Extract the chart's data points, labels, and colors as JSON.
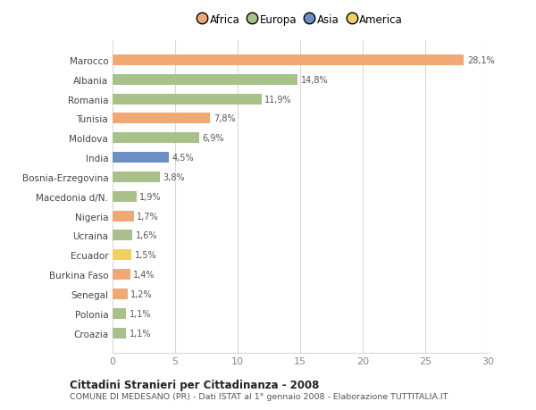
{
  "countries": [
    "Marocco",
    "Albania",
    "Romania",
    "Tunisia",
    "Moldova",
    "India",
    "Bosnia-Erzegovina",
    "Macedonia d/N.",
    "Nigeria",
    "Ucraina",
    "Ecuador",
    "Burkina Faso",
    "Senegal",
    "Polonia",
    "Croazia"
  ],
  "values": [
    28.1,
    14.8,
    11.9,
    7.8,
    6.9,
    4.5,
    3.8,
    1.9,
    1.7,
    1.6,
    1.5,
    1.4,
    1.2,
    1.1,
    1.1
  ],
  "labels": [
    "28,1%",
    "14,8%",
    "11,9%",
    "7,8%",
    "6,9%",
    "4,5%",
    "3,8%",
    "1,9%",
    "1,7%",
    "1,6%",
    "1,5%",
    "1,4%",
    "1,2%",
    "1,1%",
    "1,1%"
  ],
  "continents": [
    "Africa",
    "Europa",
    "Europa",
    "Africa",
    "Europa",
    "Asia",
    "Europa",
    "Europa",
    "Africa",
    "Europa",
    "America",
    "Africa",
    "Africa",
    "Europa",
    "Europa"
  ],
  "colors": {
    "Africa": "#F0A875",
    "Europa": "#A8C08A",
    "Asia": "#6B8FC4",
    "America": "#F0D060"
  },
  "legend_order": [
    "Africa",
    "Europa",
    "Asia",
    "America"
  ],
  "title1": "Cittadini Stranieri per Cittadinanza - 2008",
  "title2": "COMUNE DI MEDESANO (PR) - Dati ISTAT al 1° gennaio 2008 - Elaborazione TUTTITALIA.IT",
  "xlim": [
    0,
    30
  ],
  "xticks": [
    0,
    5,
    10,
    15,
    20,
    25,
    30
  ],
  "bg_color": "#ffffff",
  "grid_color": "#d8d8d8"
}
